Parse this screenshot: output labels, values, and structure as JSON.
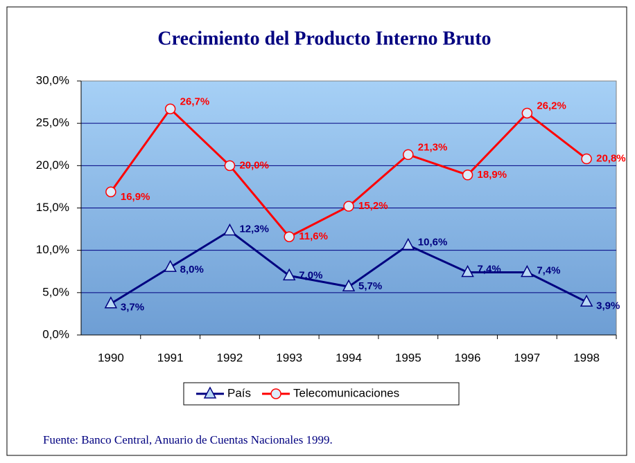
{
  "chart_data": {
    "type": "line",
    "title": "Crecimiento del Producto Interno Bruto",
    "categories": [
      "1990",
      "1991",
      "1992",
      "1993",
      "1994",
      "1995",
      "1996",
      "1997",
      "1998"
    ],
    "series": [
      {
        "name": "País",
        "color": "#000080",
        "marker": "triangle",
        "values": [
          3.7,
          8.0,
          12.3,
          7.0,
          5.7,
          10.6,
          7.4,
          7.4,
          3.9
        ],
        "value_labels": [
          "3,7%",
          "8,0%",
          "12,3%",
          "7,0%",
          "5,7%",
          "10,6%",
          "7,4%",
          "7,4%",
          "3,9%"
        ]
      },
      {
        "name": "Telecomunicaciones",
        "color": "#ff0000",
        "marker": "circle",
        "values": [
          16.9,
          26.7,
          20.0,
          11.6,
          15.2,
          21.3,
          18.9,
          26.2,
          20.8
        ],
        "value_labels": [
          "16,9%",
          "26,7%",
          "20,0%",
          "11,6%",
          "15,2%",
          "21,3%",
          "18,9%",
          "26,2%",
          "20,8%"
        ]
      }
    ],
    "ylim": [
      0,
      30
    ],
    "yticks": [
      {
        "value": 0,
        "label": "0,0%"
      },
      {
        "value": 5,
        "label": "5,0%"
      },
      {
        "value": 10,
        "label": "10,0%"
      },
      {
        "value": 15,
        "label": "15,0%"
      },
      {
        "value": 20,
        "label": "20,0%"
      },
      {
        "value": 25,
        "label": "25,0%"
      },
      {
        "value": 30,
        "label": "30,0%"
      }
    ],
    "grid": true,
    "legend": "bottom",
    "source": "Fuente:  Banco Central, Anuario de Cuentas Nacionales 1999."
  }
}
